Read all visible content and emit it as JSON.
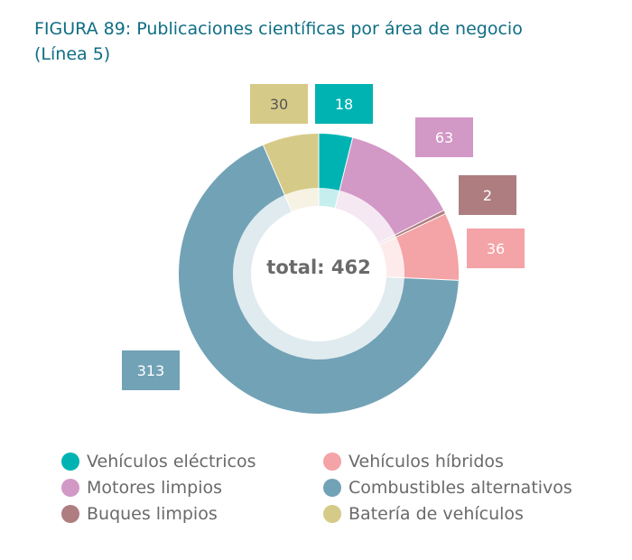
{
  "title": {
    "line1": "FIGURA 89: Publicaciones científicas por área de negocio",
    "line2": "(Línea 5)"
  },
  "center_label": "total: 462",
  "chart_data": {
    "type": "pie",
    "title": "FIGURA 89: Publicaciones científicas por área de negocio (Línea 5)",
    "total": 462,
    "slices": [
      {
        "name": "Vehículos eléctricos",
        "value": 18,
        "color": "#00b3b3"
      },
      {
        "name": "Motores limpios",
        "value": 63,
        "color": "#d298c6"
      },
      {
        "name": "Buques limpios",
        "value": 2,
        "color": "#ae7d80"
      },
      {
        "name": "Vehículos híbridos",
        "value": 36,
        "color": "#f4a3a6"
      },
      {
        "name": "Combustibles alternativos",
        "value": 313,
        "color": "#72a2b6"
      },
      {
        "name": "Batería de vehículos",
        "value": 30,
        "color": "#d6ca88"
      }
    ],
    "legend_position": "bottom"
  },
  "legend": [
    {
      "label": "Vehículos eléctricos",
      "color": "#00b3b3"
    },
    {
      "label": "Vehículos híbridos",
      "color": "#f4a3a6"
    },
    {
      "label": "Motores limpios",
      "color": "#d298c6"
    },
    {
      "label": "Combustibles alternativos",
      "color": "#72a2b6"
    },
    {
      "label": "Buques limpios",
      "color": "#ae7d80"
    },
    {
      "label": "Batería de vehículos",
      "color": "#d6ca88"
    }
  ]
}
